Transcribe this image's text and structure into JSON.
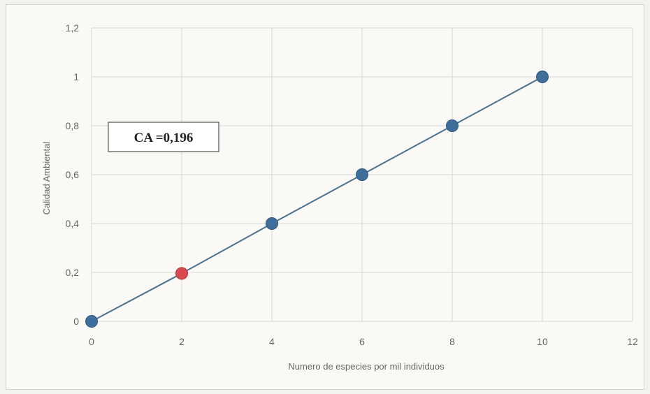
{
  "chart_data": {
    "type": "scatter",
    "xlabel": "Numero de especies por mil individuos",
    "ylabel": "Calidad Ambiental",
    "xlim": [
      0,
      12
    ],
    "ylim": [
      0,
      1.2
    ],
    "x_ticks": [
      "0",
      "2",
      "4",
      "6",
      "8",
      "10",
      "12"
    ],
    "y_ticks": [
      "0",
      "0,2",
      "0,4",
      "0,6",
      "0,8",
      "1",
      "1,2"
    ],
    "grid": true,
    "line_color": "#4a6f8f",
    "point_color": "#3f6d9c",
    "highlight_color": "#d9474f",
    "series": [
      {
        "x": [
          0,
          2,
          4,
          6,
          8,
          10
        ],
        "y": [
          0,
          0.196,
          0.4,
          0.6,
          0.8,
          1.0
        ],
        "highlight_index": 1
      }
    ],
    "annotation": {
      "text": "CA =0,196"
    }
  }
}
